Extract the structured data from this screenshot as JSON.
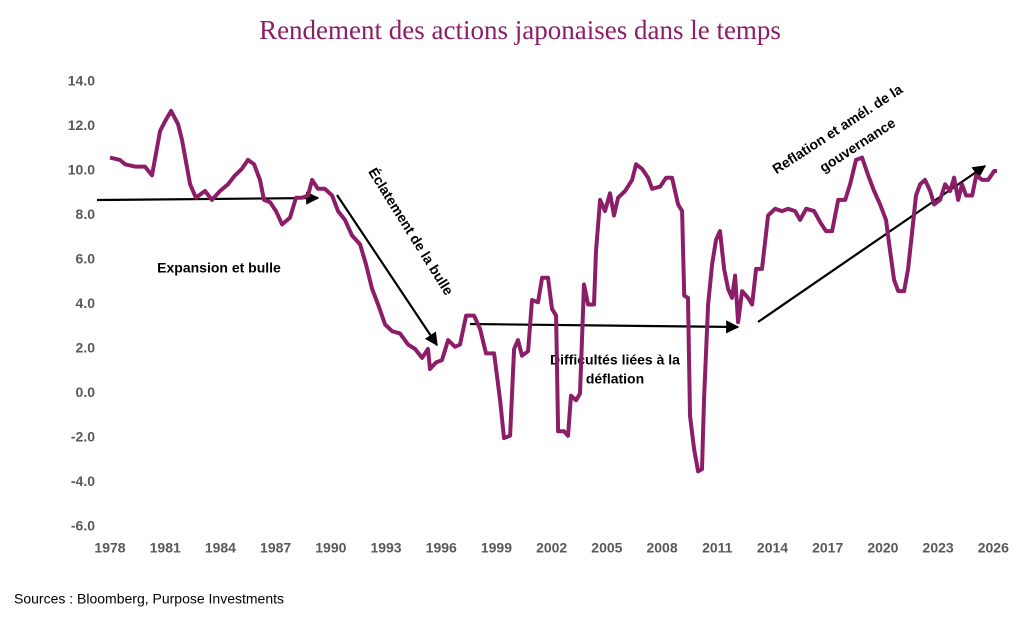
{
  "chart_data": {
    "type": "line",
    "title": "Rendement des actions japonaises dans le temps",
    "source": "Sources : Bloomberg, Purpose Investments",
    "color": "#8c1d68",
    "grid": false,
    "xlim": [
      1978,
      2026.2
    ],
    "xticks": [
      1978,
      1981,
      1984,
      1987,
      1990,
      1993,
      1996,
      1999,
      2002,
      2005,
      2008,
      2011,
      2014,
      2017,
      2020,
      2023,
      2026
    ],
    "ylim": [
      -6,
      14
    ],
    "yticks": [
      {
        "value": -6,
        "label": "-6.0"
      },
      {
        "value": -4,
        "label": "-4.0"
      },
      {
        "value": -2,
        "label": "-2.0"
      },
      {
        "value": 0,
        "label": "0.0"
      },
      {
        "value": 2,
        "label": "2.0"
      },
      {
        "value": 4,
        "label": "4.0"
      },
      {
        "value": 6,
        "label": "6.0"
      },
      {
        "value": 8,
        "label": "8.0"
      },
      {
        "value": 10,
        "label": "10.0"
      },
      {
        "value": 12,
        "label": "12.0"
      },
      {
        "value": 14,
        "label": "14.0"
      }
    ],
    "annotations": [
      {
        "lines": [
          "Expansion et bulle"
        ]
      },
      {
        "lines": [
          "Éclatement de la bulle"
        ]
      },
      {
        "lines": [
          "Difficultés liées à la",
          "déflation"
        ]
      },
      {
        "lines": [
          "Reflation et amél. de la",
          "gouvernance"
        ]
      }
    ],
    "x": [
      1978.0,
      1978.54,
      1978.82,
      1979.36,
      1979.9,
      1980.28,
      1980.72,
      1981.04,
      1981.32,
      1981.7,
      1981.91,
      1982.35,
      1982.67,
      1983.16,
      1983.54,
      1983.98,
      1984.41,
      1984.79,
      1985.17,
      1985.5,
      1985.83,
      1986.15,
      1986.37,
      1986.7,
      1987.02,
      1987.35,
      1987.78,
      1988.11,
      1988.43,
      1988.76,
      1988.98,
      1989.3,
      1989.68,
      1990.07,
      1990.39,
      1990.77,
      1991.15,
      1991.59,
      1991.91,
      1992.24,
      1992.57,
      1992.95,
      1993.33,
      1993.76,
      1994.2,
      1994.58,
      1994.96,
      1995.28,
      1995.39,
      1995.72,
      1996.04,
      1996.37,
      1996.75,
      1997.02,
      1997.35,
      1997.78,
      1998.11,
      1998.43,
      1998.87,
      1999.2,
      1999.41,
      1999.74,
      1999.96,
      2000.17,
      2000.39,
      2000.72,
      2000.93,
      2001.26,
      2001.48,
      2001.8,
      2002.02,
      2002.24,
      2002.35,
      2002.67,
      2002.89,
      2003.05,
      2003.33,
      2003.54,
      2003.76,
      2003.98,
      2004.3,
      2004.41,
      2004.63,
      2004.9,
      2005.17,
      2005.39,
      2005.61,
      2005.99,
      2006.37,
      2006.59,
      2006.91,
      2007.24,
      2007.46,
      2007.89,
      2008.22,
      2008.54,
      2008.87,
      2009.09,
      2009.2,
      2009.41,
      2009.52,
      2009.74,
      2009.96,
      2010.17,
      2010.28,
      2010.5,
      2010.72,
      2010.93,
      2011.15,
      2011.37,
      2011.59,
      2011.8,
      2011.97,
      2012.13,
      2012.35,
      2012.67,
      2012.89,
      2013.11,
      2013.43,
      2013.76,
      2014.14,
      2014.52,
      2014.85,
      2015.23,
      2015.5,
      2015.83,
      2016.26,
      2016.59,
      2016.91,
      2017.24,
      2017.57,
      2017.95,
      2018.22,
      2018.54,
      2018.87,
      2019.2,
      2019.52,
      2019.85,
      2020.17,
      2020.39,
      2020.61,
      2020.83,
      2021.15,
      2021.37,
      2021.59,
      2021.8,
      2022.02,
      2022.29,
      2022.57,
      2022.78,
      2023.11,
      2023.38,
      2023.65,
      2023.87,
      2024.09,
      2024.3,
      2024.52,
      2024.85,
      2025.07,
      2025.39,
      2025.72,
      2026.04,
      2026.2
    ],
    "values": [
      10.6,
      10.5,
      10.3,
      10.2,
      10.2,
      9.8,
      11.8,
      12.3,
      12.7,
      12.1,
      11.4,
      9.4,
      8.8,
      9.1,
      8.7,
      9.1,
      9.4,
      9.8,
      10.1,
      10.5,
      10.3,
      9.6,
      8.7,
      8.6,
      8.2,
      7.6,
      7.9,
      8.8,
      8.8,
      8.9,
      9.6,
      9.2,
      9.2,
      8.9,
      8.2,
      7.8,
      7.1,
      6.7,
      5.8,
      4.7,
      4.0,
      3.1,
      2.8,
      2.7,
      2.2,
      2.0,
      1.6,
      2.0,
      1.1,
      1.4,
      1.5,
      2.4,
      2.1,
      2.2,
      3.5,
      3.5,
      2.9,
      1.8,
      1.8,
      -0.3,
      -2.0,
      -1.9,
      2.0,
      2.4,
      1.7,
      1.9,
      4.2,
      4.1,
      5.2,
      5.2,
      3.8,
      3.5,
      -1.7,
      -1.7,
      -1.9,
      -0.1,
      -0.3,
      0.0,
      4.9,
      4.0,
      4.0,
      6.4,
      8.7,
      8.2,
      9.0,
      8.0,
      8.8,
      9.1,
      9.6,
      10.3,
      10.1,
      9.7,
      9.2,
      9.3,
      9.7,
      9.7,
      8.5,
      8.2,
      4.4,
      4.3,
      -1.0,
      -2.5,
      -3.5,
      -3.4,
      -0.3,
      4.0,
      5.8,
      6.9,
      7.3,
      5.6,
      4.7,
      4.3,
      5.3,
      3.2,
      4.6,
      4.3,
      4.0,
      5.6,
      5.6,
      8.0,
      8.3,
      8.2,
      8.3,
      8.2,
      7.8,
      8.3,
      8.2,
      7.7,
      7.3,
      7.3,
      8.7,
      8.7,
      9.4,
      10.5,
      10.6,
      9.8,
      9.1,
      8.5,
      7.8,
      6.4,
      5.1,
      4.6,
      4.6,
      5.6,
      7.3,
      8.9,
      9.4,
      9.6,
      9.1,
      8.5,
      8.7,
      9.4,
      9.1,
      9.7,
      8.7,
      9.4,
      8.9,
      8.9,
      9.8,
      9.6,
      9.6,
      10.0,
      10.0
    ]
  }
}
